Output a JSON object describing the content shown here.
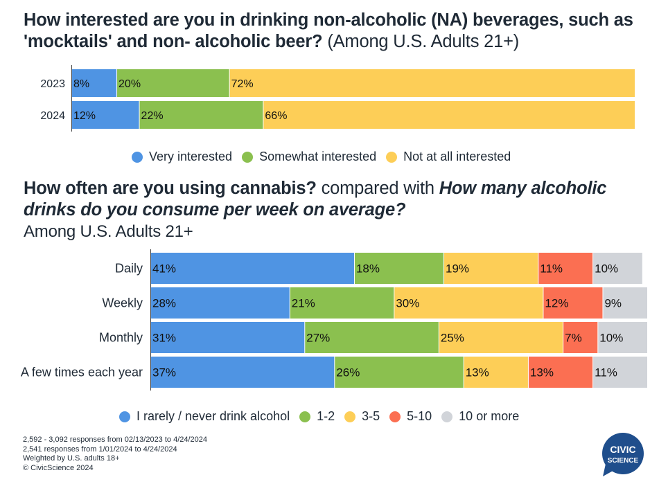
{
  "chart_top": {
    "title_bold": "How interested are you in drinking non-alcoholic (NA) beverages, such as 'mocktails' and non- alcoholic beer?",
    "title_normal": "(Among U.S. Adults 21+)",
    "type": "bar",
    "orientation": "horizontal",
    "stacked": true,
    "categories": [
      "2023",
      "2024"
    ],
    "series": [
      {
        "name": "Very interested",
        "color": "#4f94e3",
        "values": [
          8,
          12
        ]
      },
      {
        "name": "Somewhat interested",
        "color": "#8bc04f",
        "values": [
          20,
          22
        ]
      },
      {
        "name": "Not at all interested",
        "color": "#fdce57",
        "values": [
          72,
          66
        ]
      }
    ],
    "value_suffix": "%",
    "legend_position": "bottom"
  },
  "chart_bottom": {
    "title_bold": "How often are you using cannabis?",
    "title_mid": " compared with ",
    "title_italic": "How many alcoholic drinks do you consume per week on average?",
    "subtitle": "Among U.S. Adults 21+",
    "type": "bar",
    "orientation": "horizontal",
    "stacked": true,
    "categories": [
      "Daily",
      "Weekly",
      "Monthly",
      "A few times each year"
    ],
    "series": [
      {
        "name": "I rarely / never drink alcohol",
        "color": "#4f94e3",
        "values": [
          41,
          28,
          31,
          37
        ]
      },
      {
        "name": "1-2",
        "color": "#8bc04f",
        "values": [
          18,
          21,
          27,
          26
        ]
      },
      {
        "name": "3-5",
        "color": "#fdce57",
        "values": [
          19,
          30,
          25,
          13
        ]
      },
      {
        "name": "5-10",
        "color": "#fb6f52",
        "values": [
          11,
          12,
          7,
          13
        ]
      },
      {
        "name": "10 or more",
        "color": "#d1d4d9",
        "values": [
          10,
          9,
          10,
          11
        ]
      }
    ],
    "value_suffix": "%",
    "legend_position": "bottom"
  },
  "footnotes": [
    "2,592 - 3,092 responses from 02/13/2023 to 4/24/2024",
    "2,541 responses from 1/01/2024 to 4/24/2024",
    "Weighted by U.S. adults 18+",
    "© CivicScience 2024"
  ],
  "logo": {
    "line1": "CIVIC",
    "line2": "SCIENCE",
    "color": "#1f4e8c"
  }
}
